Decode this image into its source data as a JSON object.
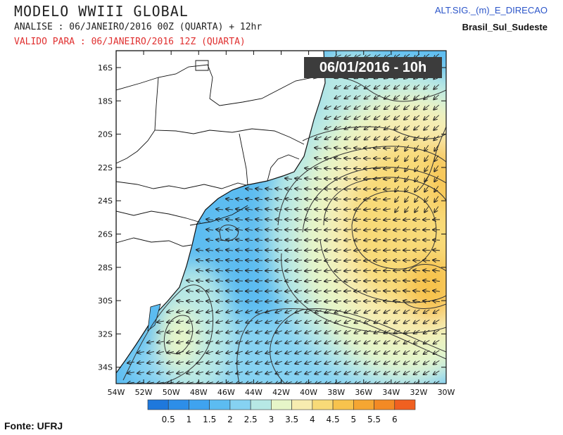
{
  "header": {
    "title": "MODELO WWIII GLOBAL",
    "analysis": "ANALISE : 06/JANEIRO/2016 00Z  (QUARTA) + 12hr",
    "valid": "VALIDO PARA : 06/JANEIRO/2016 12Z  (QUARTA)",
    "variable": "ALT.SIG._(m)_E_DIRECAO",
    "region": "Brasil_Sul_Sudeste"
  },
  "timestamp": "06/01/2016 - 10h",
  "source": "Fonte: UFRJ",
  "map": {
    "lat_labels": [
      "16S",
      "18S",
      "20S",
      "22S",
      "24S",
      "26S",
      "28S",
      "30S",
      "32S",
      "34S"
    ],
    "lon_labels": [
      "54W",
      "52W",
      "50W",
      "48W",
      "46W",
      "44W",
      "42W",
      "40W",
      "38W",
      "36W",
      "34W",
      "32W",
      "30W"
    ],
    "lon_range": [
      -54,
      -30
    ],
    "lat_range": [
      -35,
      -15
    ]
  },
  "legend": {
    "labels": [
      "0.5",
      "1",
      "1.5",
      "2",
      "2.5",
      "3",
      "3.5",
      "4",
      "4.5",
      "5",
      "5.5",
      "6"
    ],
    "colors": [
      "#1e78dc",
      "#2d8ee8",
      "#3fa3ef",
      "#5cbcf1",
      "#86d2f2",
      "#b7e8e5",
      "#e6f5c8",
      "#f7ecb0",
      "#f8da78",
      "#f7c34d",
      "#f5a632",
      "#f38a24",
      "#f06020"
    ]
  }
}
